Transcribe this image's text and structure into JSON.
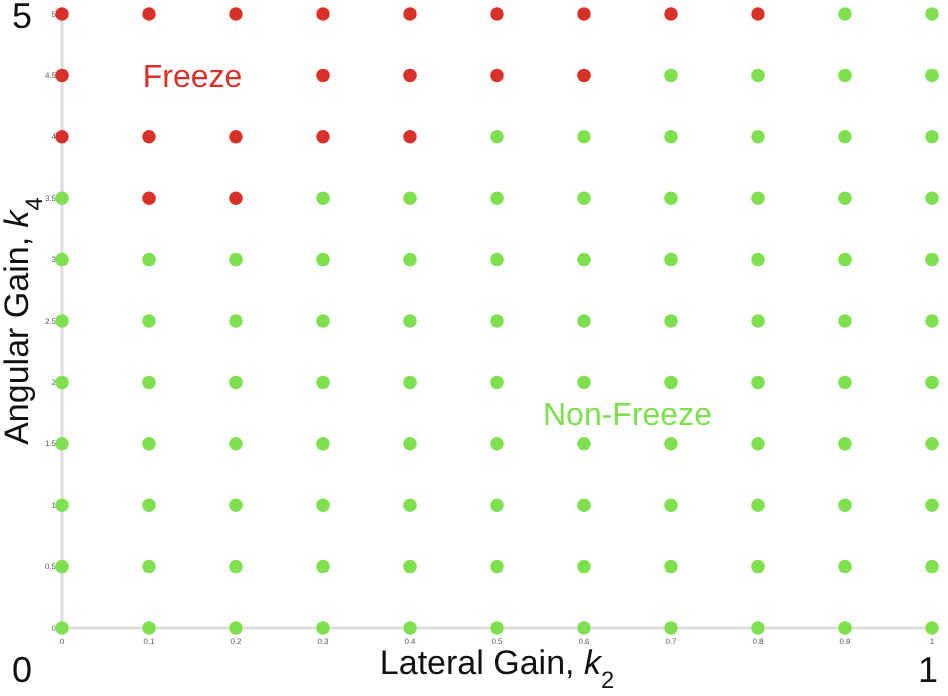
{
  "chart_data": {
    "type": "scatter",
    "xlabel": "Lateral Gain, k$_{2}$",
    "ylabel": "Angular Gain, k$_{4}$",
    "xlim": [
      0,
      1
    ],
    "ylim": [
      0,
      5
    ],
    "xticks": [
      0,
      0.1,
      0.2,
      0.3,
      0.4,
      0.5,
      0.6,
      0.7,
      0.8,
      0.9,
      1
    ],
    "yticks": [
      0,
      0.5,
      1,
      1.5,
      2,
      2.5,
      3,
      3.5,
      4,
      4.5,
      5
    ],
    "grid": false,
    "marker": "circle",
    "annotations": [
      "0",
      "1",
      "5"
    ],
    "series": [
      {
        "name": "Freeze",
        "color": "#d9302a",
        "x": [
          0,
          0.1,
          0.2,
          0.3,
          0.4,
          0.5,
          0.6,
          0.7,
          0.8,
          0,
          0.3,
          0.4,
          0.5,
          0.6,
          0,
          0.1,
          0.2,
          0.3,
          0.4,
          0.1,
          0.2
        ],
        "values": [
          5,
          5,
          5,
          5,
          5,
          5,
          5,
          5,
          5,
          4.5,
          4.5,
          4.5,
          4.5,
          4.5,
          4,
          4,
          4,
          4,
          4,
          3.5,
          3.5
        ]
      },
      {
        "name": "Non-Freeze",
        "color": "#7ee04f",
        "x": [
          0.9,
          1,
          0.7,
          0.8,
          0.9,
          1,
          0.5,
          0.6,
          0.7,
          0.8,
          0.9,
          1,
          0,
          0.3,
          0.4,
          0.5,
          0.6,
          0.7,
          0.8,
          0.9,
          1,
          0,
          0.1,
          0.2,
          0.3,
          0.4,
          0.5,
          0.6,
          0.7,
          0.8,
          0.9,
          1,
          0,
          0.1,
          0.2,
          0.3,
          0.4,
          0.5,
          0.6,
          0.7,
          0.8,
          0.9,
          1,
          0,
          0.1,
          0.2,
          0.3,
          0.4,
          0.5,
          0.6,
          0.7,
          0.8,
          0.9,
          1,
          0,
          0.1,
          0.2,
          0.3,
          0.4,
          0.5,
          0.6,
          0.7,
          0.8,
          0.9,
          1,
          0,
          0.1,
          0.2,
          0.3,
          0.4,
          0.5,
          0.6,
          0.7,
          0.8,
          0.9,
          1,
          0,
          0.1,
          0.2,
          0.3,
          0.4,
          0.5,
          0.6,
          0.7,
          0.8,
          0.9,
          1,
          0,
          0.1,
          0.2,
          0.3,
          0.4,
          0.5,
          0.6,
          0.7,
          0.8,
          0.9,
          1
        ],
        "values": [
          5,
          5,
          4.5,
          4.5,
          4.5,
          4.5,
          4,
          4,
          4,
          4,
          4,
          4,
          3.5,
          3.5,
          3.5,
          3.5,
          3.5,
          3.5,
          3.5,
          3.5,
          3.5,
          3,
          3,
          3,
          3,
          3,
          3,
          3,
          3,
          3,
          3,
          3,
          2.5,
          2.5,
          2.5,
          2.5,
          2.5,
          2.5,
          2.5,
          2.5,
          2.5,
          2.5,
          2.5,
          2,
          2,
          2,
          2,
          2,
          2,
          2,
          2,
          2,
          2,
          2,
          1.5,
          1.5,
          1.5,
          1.5,
          1.5,
          1.5,
          1.5,
          1.5,
          1.5,
          1.5,
          1.5,
          1,
          1,
          1,
          1,
          1,
          1,
          1,
          1,
          1,
          1,
          1,
          0.5,
          0.5,
          0.5,
          0.5,
          0.5,
          0.5,
          0.5,
          0.5,
          0.5,
          0.5,
          0.5,
          0,
          0,
          0,
          0,
          0,
          0,
          0,
          0,
          0,
          0,
          0
        ]
      }
    ]
  }
}
